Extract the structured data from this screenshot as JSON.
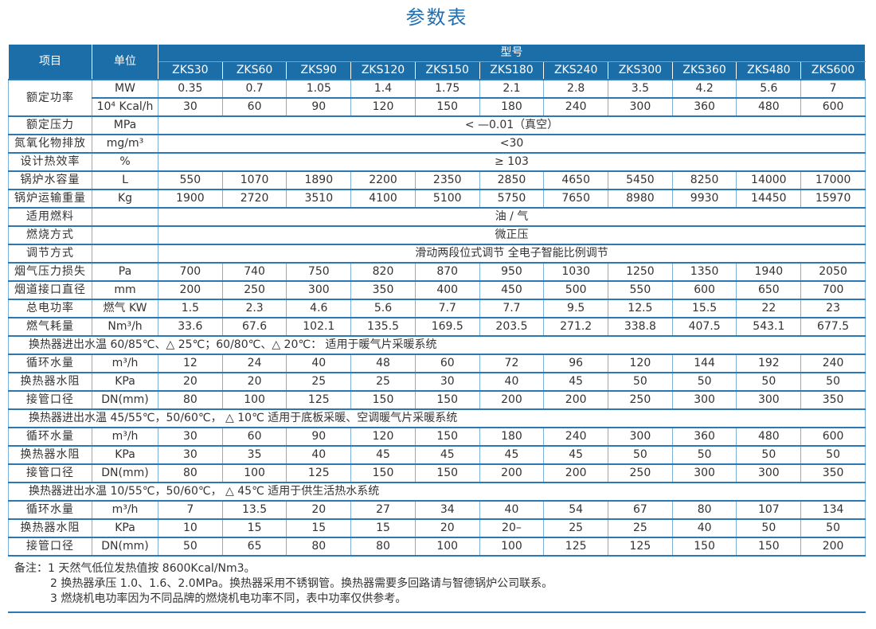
{
  "title": "参数表",
  "header": {
    "item": "项目",
    "unit": "单位",
    "model": "型号",
    "models": [
      "ZKS30",
      "ZKS60",
      "ZKS90",
      "ZKS120",
      "ZKS150",
      "ZKS180",
      "ZKS240",
      "ZKS300",
      "ZKS360",
      "ZKS480",
      "ZKS600"
    ]
  },
  "rows": [
    {
      "item": "额定功率",
      "unit": "MW",
      "values": [
        "0.35",
        "0.7",
        "1.05",
        "1.4",
        "1.75",
        "2.1",
        "2.8",
        "3.5",
        "4.2",
        "5.6",
        "7"
      ]
    },
    {
      "unit": "10⁴ Kcal/h",
      "values": [
        "30",
        "60",
        "90",
        "120",
        "150",
        "180",
        "240",
        "300",
        "360",
        "480",
        "600"
      ]
    },
    {
      "item": "额定压力",
      "unit": "MPa",
      "span": "< —0.01（真空）"
    },
    {
      "item": "氮氧化物排放",
      "unit": "mg/m³",
      "span": "<30"
    },
    {
      "item": "设计热效率",
      "unit": "%",
      "span": "≥ 103"
    },
    {
      "item": "锅炉水容量",
      "unit": "L",
      "values": [
        "550",
        "1070",
        "1890",
        "2200",
        "2350",
        "2850",
        "4650",
        "5450",
        "8250",
        "14000",
        "17000"
      ]
    },
    {
      "item": "锅炉运输重量",
      "unit": "Kg",
      "values": [
        "1900",
        "2720",
        "3510",
        "4100",
        "5100",
        "5750",
        "7650",
        "8980",
        "9930",
        "14450",
        "15970"
      ]
    },
    {
      "item": "适用燃料",
      "unit": "",
      "span": "油 / 气"
    },
    {
      "item": "燃烧方式",
      "unit": "",
      "span": "微正压"
    },
    {
      "item": "调节方式",
      "unit": "",
      "span": "滑动两段位式调节   全电子智能比例调节"
    },
    {
      "item": "烟气压力损失",
      "unit": "Pa",
      "values": [
        "700",
        "740",
        "750",
        "820",
        "870",
        "950",
        "1030",
        "1250",
        "1350",
        "1940",
        "2050"
      ]
    },
    {
      "item": "烟道接口直径",
      "unit": "mm",
      "values": [
        "200",
        "250",
        "300",
        "350",
        "400",
        "450",
        "500",
        "550",
        "600",
        "650",
        "700"
      ]
    },
    {
      "item": "总电功率",
      "unit": "燃气 KW",
      "values": [
        "1.5",
        "2.3",
        "4.6",
        "5.6",
        "7.7",
        "7.7",
        "9.5",
        "12.5",
        "15.5",
        "22",
        "23"
      ]
    },
    {
      "item": "燃气耗量",
      "unit": "Nm³/h",
      "values": [
        "33.6",
        "67.6",
        "102.1",
        "135.5",
        "169.5",
        "203.5",
        "271.2",
        "338.8",
        "407.5",
        "543.1",
        "677.5"
      ]
    },
    {
      "section": "换热器进出水温 60/85℃、△ 25℃；60/80℃、△ 20℃：  适用于暖气片采暖系统"
    },
    {
      "item": "循环水量",
      "unit": "m³/h",
      "values": [
        "12",
        "24",
        "40",
        "48",
        "60",
        "72",
        "96",
        "120",
        "144",
        "192",
        "240"
      ]
    },
    {
      "item": "换热器水阻",
      "unit": "KPa",
      "values": [
        "20",
        "20",
        "25",
        "25",
        "30",
        "40",
        "45",
        "50",
        "50",
        "50",
        "50"
      ]
    },
    {
      "item": "接管口径",
      "unit": "DN(mm)",
      "values": [
        "80",
        "100",
        "125",
        "150",
        "150",
        "200",
        "200",
        "250",
        "300",
        "300",
        "350"
      ]
    },
    {
      "section": "换热器进出水温 45/55℃，50/60℃， △ 10℃  适用于底板采暖、空调暖气片采暖系统"
    },
    {
      "item": "循环水量",
      "unit": "m³/h",
      "values": [
        "30",
        "60",
        "90",
        "120",
        "150",
        "180",
        "240",
        "300",
        "360",
        "480",
        "600"
      ]
    },
    {
      "item": "换热器水阻",
      "unit": "KPa",
      "values": [
        "30",
        "35",
        "40",
        "45",
        "45",
        "45",
        "45",
        "50",
        "50",
        "50",
        "50"
      ]
    },
    {
      "item": "接管口径",
      "unit": "DN(mm)",
      "values": [
        "80",
        "100",
        "125",
        "150",
        "150",
        "200",
        "200",
        "250",
        "300",
        "300",
        "350"
      ]
    },
    {
      "section": "换热器进出水温 10/55℃，50/60℃， △ 45℃  适用于供生活热水系统"
    },
    {
      "item": "循环水量",
      "unit": "m³/h",
      "values": [
        "7",
        "13.5",
        "20",
        "27",
        "34",
        "40",
        "54",
        "67",
        "80",
        "107",
        "134"
      ]
    },
    {
      "item": "换热器水阻",
      "unit": "KPa",
      "values": [
        "10",
        "15",
        "15",
        "15",
        "20",
        "20–",
        "25",
        "25",
        "40",
        "50",
        "50"
      ]
    },
    {
      "item": "接管口径",
      "unit": "DN(mm)",
      "values": [
        "50",
        "65",
        "80",
        "80",
        "100",
        "100",
        "125",
        "125",
        "150",
        "150",
        "200"
      ]
    }
  ],
  "notes": {
    "label": "备注：",
    "items": [
      "1  天然气低位发热值按 8600Kcal/Nm3。",
      "2  换热器承压 1.0、1.6、2.0MPa。换热器采用不锈钢管。换热器需要多回路请与智德锅炉公司联系。",
      "3  燃烧机电功率因为不同品牌的燃烧机电功率不同，表中功率仅供参考。"
    ]
  },
  "colors": {
    "accent": "#1c6ea8",
    "rule": "#2a78b5"
  }
}
